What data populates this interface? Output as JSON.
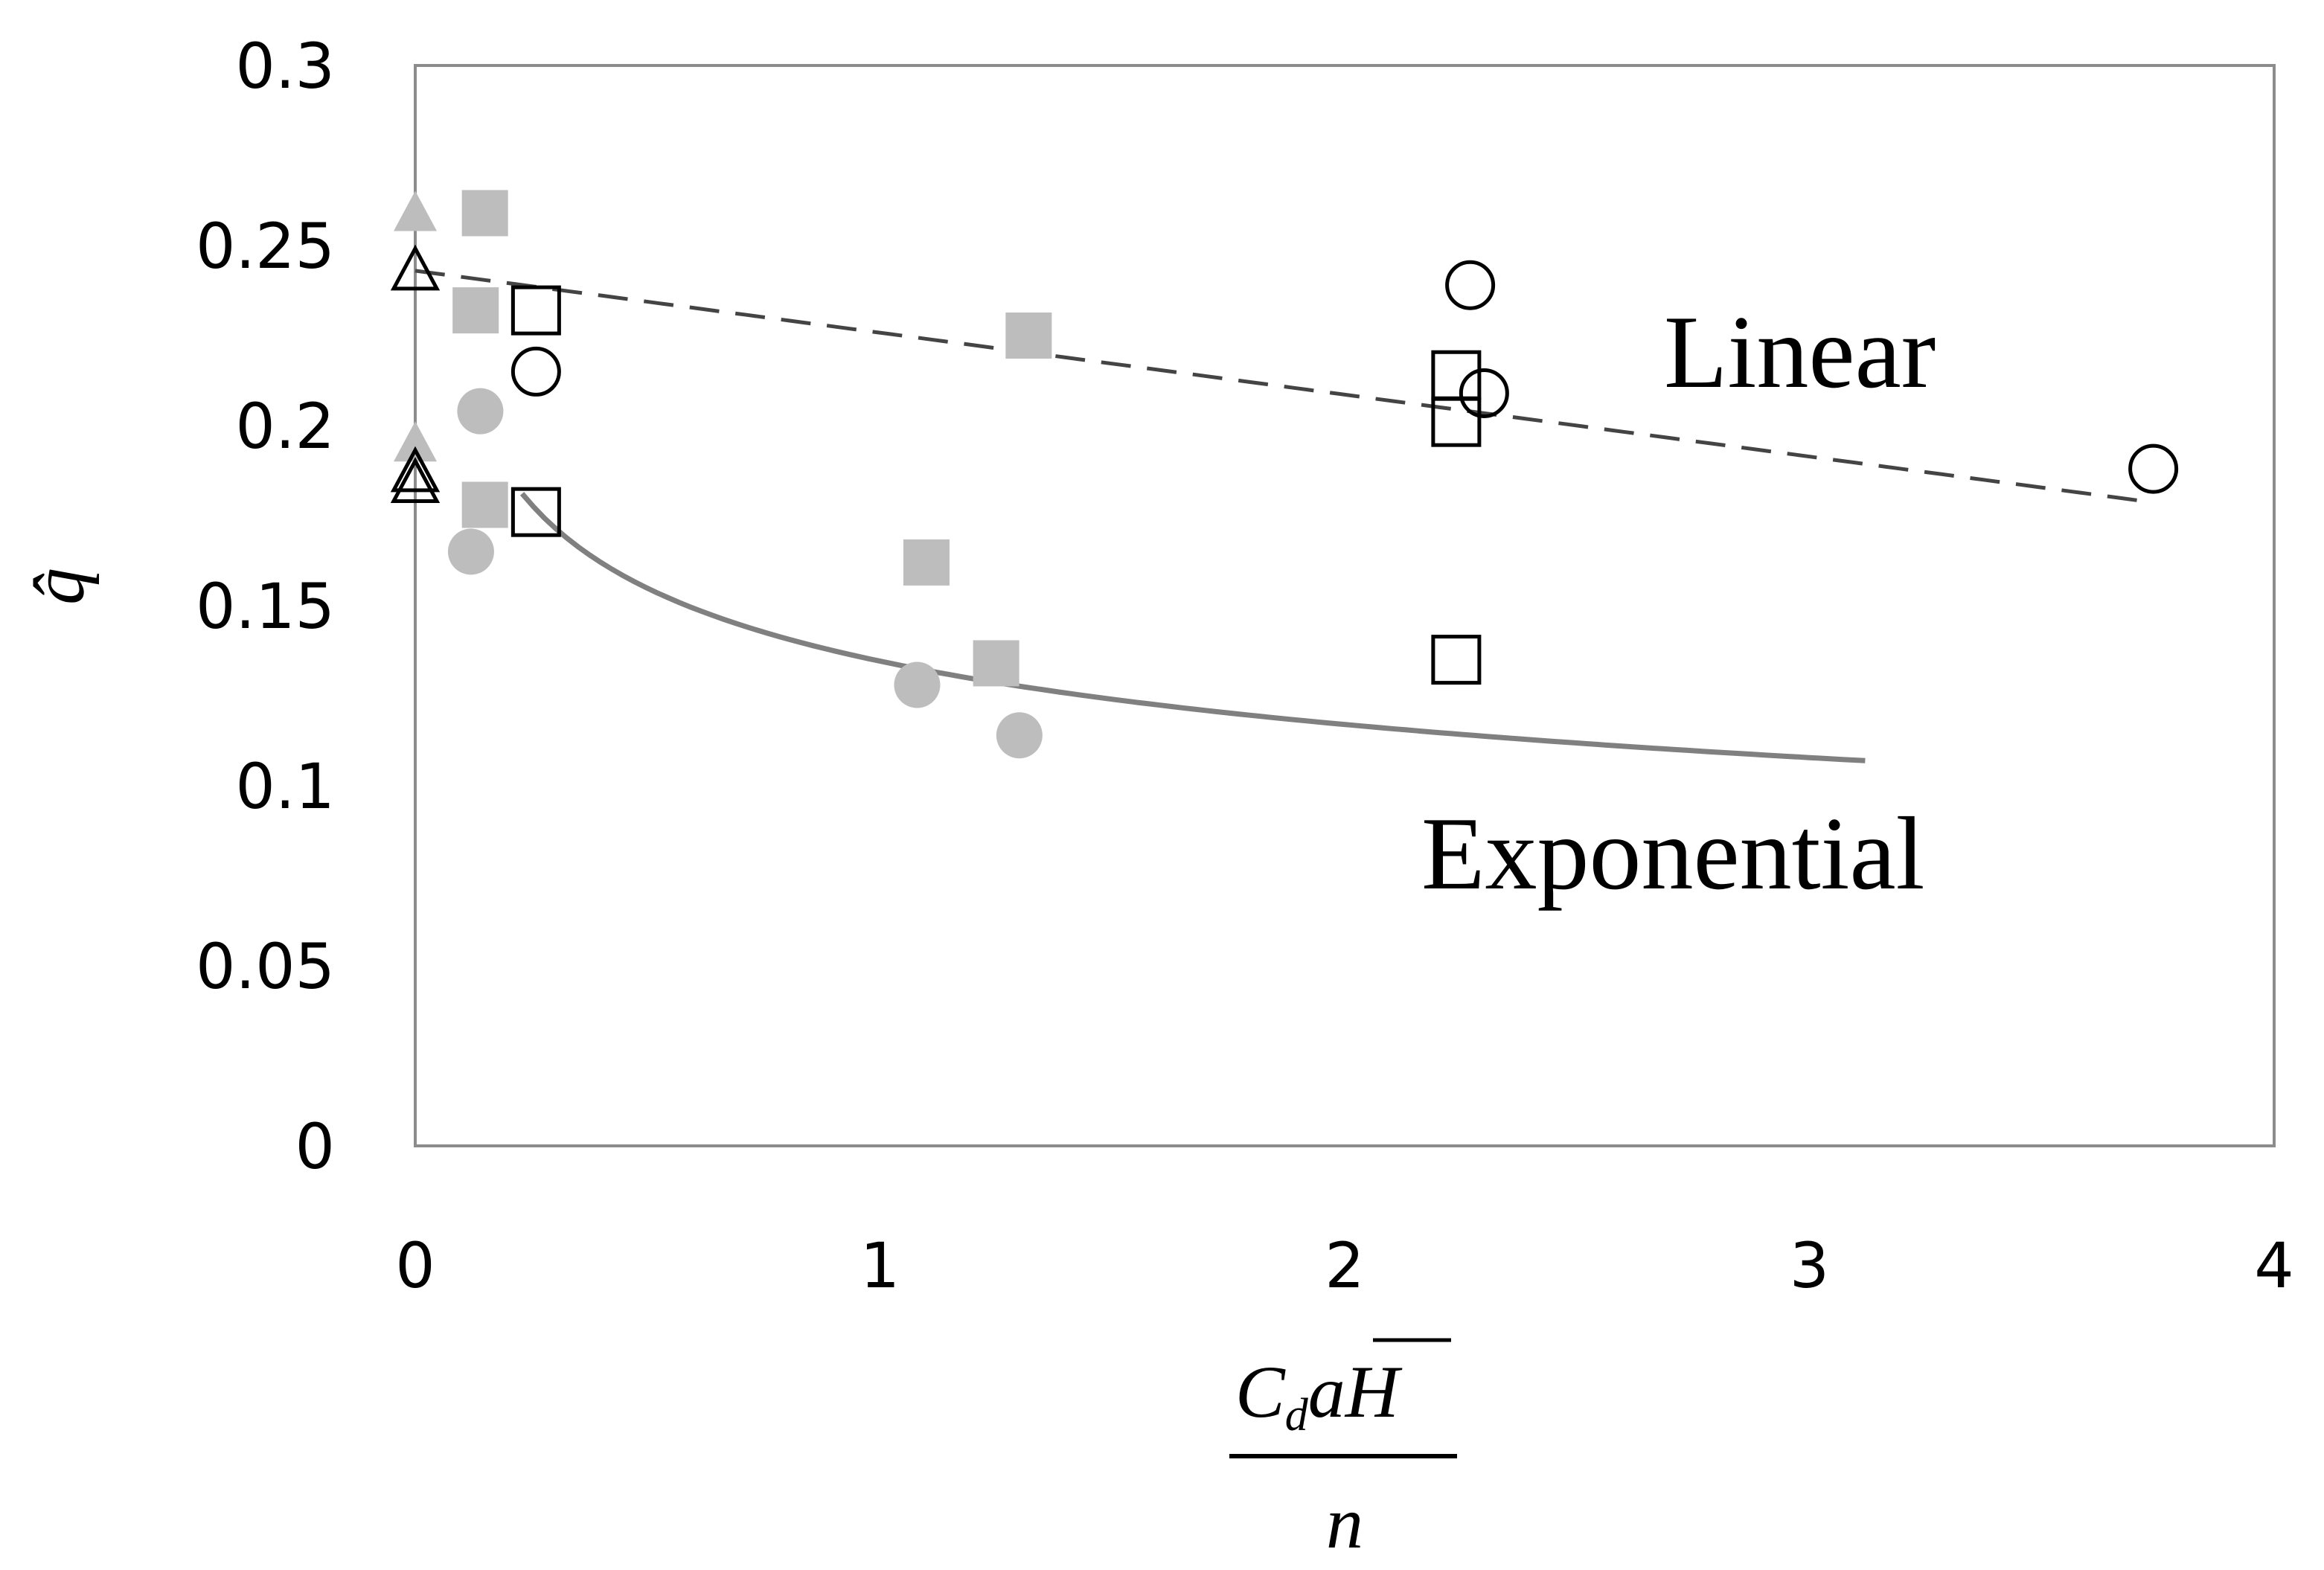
{
  "chart_data": {
    "type": "scatter",
    "xlim": [
      0,
      4
    ],
    "ylim": [
      0,
      0.3
    ],
    "x_ticks": [
      "0",
      "1",
      "2",
      "3",
      "4"
    ],
    "y_ticks": [
      "0",
      "0.05",
      "0.1",
      "0.15",
      "0.2",
      "0.25",
      "0.3"
    ],
    "ylabel": "q̂",
    "xlabel": {
      "numerator": {
        "c": "C",
        "sub": "d",
        "a": "a",
        "h": "H"
      },
      "denominator": "n"
    },
    "grid": false,
    "annotations": {
      "linear": "Linear",
      "exponential": "Exponential"
    },
    "series": [
      {
        "marker": "triangle",
        "style": "filled",
        "color": "#bdbdbd",
        "points": [
          [
            0,
            0.259
          ],
          [
            0,
            0.195
          ]
        ]
      },
      {
        "marker": "triangle",
        "style": "open",
        "color": "#000000",
        "points": [
          [
            0,
            0.243
          ],
          [
            0,
            0.187
          ],
          [
            0,
            0.184
          ]
        ]
      },
      {
        "marker": "square",
        "style": "filled",
        "color": "#bdbdbd",
        "points": [
          [
            0.15,
            0.259
          ],
          [
            0.13,
            0.232
          ],
          [
            0.15,
            0.178
          ],
          [
            1.32,
            0.225
          ],
          [
            1.1,
            0.162
          ],
          [
            1.25,
            0.134
          ]
        ]
      },
      {
        "marker": "square",
        "style": "open",
        "color": "#000000",
        "points": [
          [
            0.26,
            0.232
          ],
          [
            0.26,
            0.176
          ],
          [
            2.24,
            0.214
          ],
          [
            2.24,
            0.201
          ],
          [
            2.24,
            0.135
          ]
        ]
      },
      {
        "marker": "circle",
        "style": "filled",
        "color": "#bdbdbd",
        "points": [
          [
            0.14,
            0.204
          ],
          [
            0.12,
            0.165
          ],
          [
            1.08,
            0.128
          ],
          [
            1.3,
            0.114
          ]
        ]
      },
      {
        "marker": "circle",
        "style": "open",
        "color": "#000000",
        "points": [
          [
            0.26,
            0.215
          ],
          [
            2.27,
            0.239
          ],
          [
            2.3,
            0.209
          ],
          [
            3.74,
            0.188
          ]
        ]
      }
    ],
    "fits": [
      {
        "type": "linear",
        "style": "dashed",
        "color": "#444444",
        "intercept": 0.243,
        "slope": -0.0172,
        "x_range": [
          0,
          3.72
        ]
      },
      {
        "type": "power",
        "style": "solid",
        "color": "#808080",
        "a": 0.1346,
        "b": -0.202,
        "x_range": [
          0.23,
          3.12
        ]
      }
    ]
  }
}
